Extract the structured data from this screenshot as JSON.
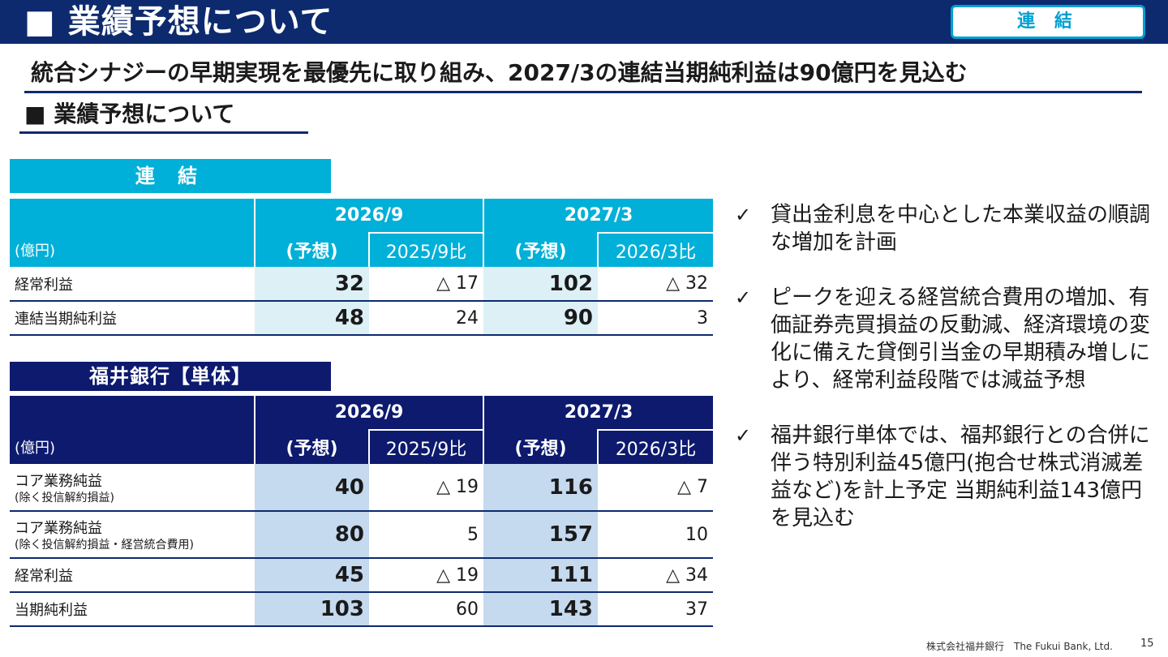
{
  "header": {
    "title": "■ 業績予想について",
    "badge": "連 結"
  },
  "headline": "統合シナジーの早期実現を最優先に取り組み、2027/3の連結当期純利益は90億円を見込む",
  "section_title": "■ 業績予想について",
  "colors": {
    "navy": "#0d2a6e",
    "cyan": "#00b0d8",
    "cons_highlight": "#dcf0f6",
    "bank_highlight": "#c5d9ef"
  },
  "consolidated": {
    "label": "連 結",
    "unit": "(億円)",
    "period1": "2026/9",
    "period2": "2027/3",
    "forecast_label": "(予想)",
    "cmp1": "2025/9比",
    "cmp2": "2026/3比",
    "rows": [
      {
        "label": "経常利益",
        "sub": "",
        "v1": "32",
        "d1": "△ 17",
        "v2": "102",
        "d2": "△ 32"
      },
      {
        "label": "連結当期純利益",
        "sub": "",
        "v1": "48",
        "d1": "24",
        "v2": "90",
        "d2": "3"
      }
    ]
  },
  "bank": {
    "label": "福井銀行【単体】",
    "unit": "(億円)",
    "period1": "2026/9",
    "period2": "2027/3",
    "forecast_label": "(予想)",
    "cmp1": "2025/9比",
    "cmp2": "2026/3比",
    "rows": [
      {
        "label": "コア業務純益",
        "sub": "(除く投信解約損益)",
        "v1": "40",
        "d1": "△ 19",
        "v2": "116",
        "d2": "△ 7"
      },
      {
        "label": "コア業務純益",
        "sub": "(除く投信解約損益・経営統合費用)",
        "v1": "80",
        "d1": "5",
        "v2": "157",
        "d2": "10"
      },
      {
        "label": "経常利益",
        "sub": "",
        "v1": "45",
        "d1": "△ 19",
        "v2": "111",
        "d2": "△ 34"
      },
      {
        "label": "当期純利益",
        "sub": "",
        "v1": "103",
        "d1": "60",
        "v2": "143",
        "d2": "37"
      }
    ]
  },
  "bullets": [
    {
      "icon": "check-icon",
      "mark": "✓",
      "text": "貸出金利息を中心とした本業収益の順調な増加を計画"
    },
    {
      "icon": "check-icon",
      "mark": "✓",
      "text": "ピークを迎える経営統合費用の増加、有価証券売買損益の反動減、経済環境の変化に備えた貸倒引当金の早期積み増しにより、経常利益段階では減益予想"
    },
    {
      "icon": "check-icon",
      "mark": "✓",
      "text": "福井銀行単体では、福邦銀行との合併に伴う特別利益45億円(抱合せ株式消滅差益など)を計上予定 当期純利益143億円を見込む"
    }
  ],
  "footer": {
    "company": "株式会社福井銀行　The Fukui Bank, Ltd.",
    "page": "15"
  }
}
